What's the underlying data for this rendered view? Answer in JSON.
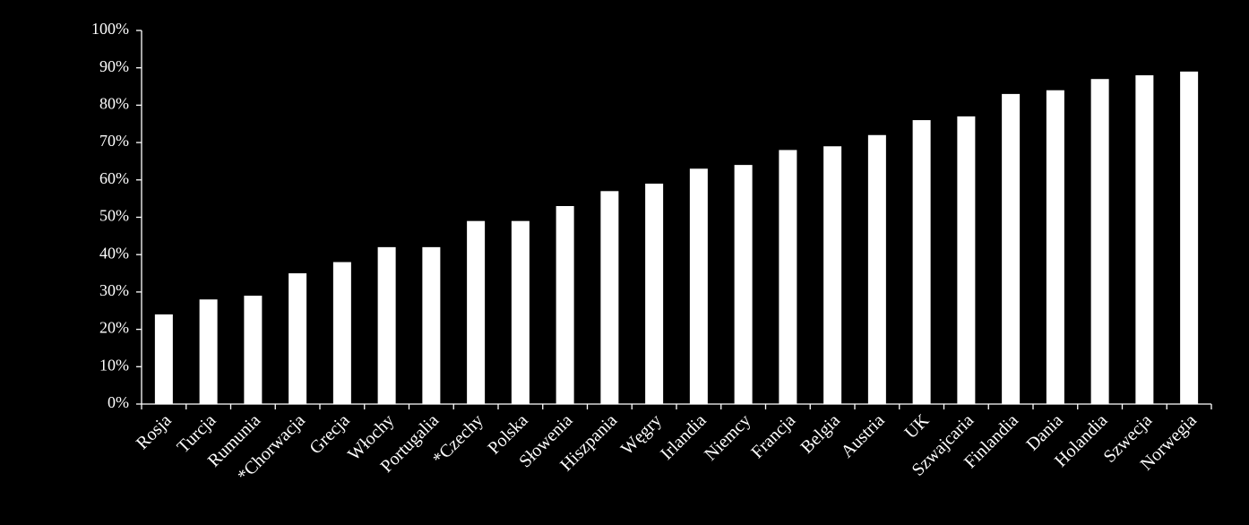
{
  "chart_data": {
    "type": "bar",
    "categories": [
      "Rosja",
      "Turcja",
      "Rumunia",
      "*Chorwacja",
      "Grecja",
      "Włochy",
      "Portugalia",
      "*Czechy",
      "Polska",
      "Słowenia",
      "Hiszpania",
      "Węgry",
      "Irlandia",
      "Niemcy",
      "Francja",
      "Belgia",
      "Austria",
      "UK",
      "Szwajcaria",
      "Finlandia",
      "Dania",
      "Holandia",
      "Szwecja",
      "Norwegia"
    ],
    "values": [
      24,
      28,
      29,
      35,
      38,
      42,
      42,
      49,
      49,
      53,
      57,
      59,
      63,
      64,
      68,
      69,
      72,
      76,
      77,
      83,
      84,
      87,
      88,
      89
    ],
    "color": "#ffffff",
    "ylim": [
      0,
      100
    ],
    "yticks": [
      {
        "value": 0,
        "label": "0%"
      },
      {
        "value": 10,
        "label": "10%"
      },
      {
        "value": 20,
        "label": "20%"
      },
      {
        "value": 30,
        "label": "30%"
      },
      {
        "value": 40,
        "label": "40%"
      },
      {
        "value": 50,
        "label": "50%"
      },
      {
        "value": 60,
        "label": "60%"
      },
      {
        "value": 70,
        "label": "70%"
      },
      {
        "value": 80,
        "label": "80%"
      },
      {
        "value": 90,
        "label": "90%"
      },
      {
        "value": 100,
        "label": "100%"
      }
    ],
    "grid": false
  }
}
